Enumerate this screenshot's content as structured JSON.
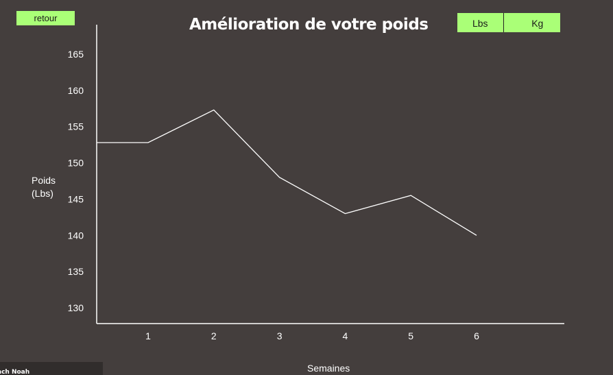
{
  "header": {
    "back_label": "retour",
    "title": "Amélioration de votre poids",
    "unit_lbs": "Lbs",
    "unit_kg": "Kg"
  },
  "footer": {
    "text": "ach Noah"
  },
  "colors": {
    "background": "#443e3d",
    "accent": "#aaff77",
    "line": "#ffffff"
  },
  "chart_data": {
    "type": "line",
    "title": "Amélioration de votre poids",
    "xlabel": "Semaines",
    "ylabel": "Poids\n(Lbs)",
    "x": [
      1,
      2,
      3,
      4,
      5,
      6
    ],
    "xtick_labels": [
      "1",
      "2",
      "3",
      "4",
      "5",
      "6"
    ],
    "ytick_labels": [
      "130",
      "135",
      "140",
      "145",
      "150",
      "155",
      "160",
      "165"
    ],
    "ylim": [
      130,
      165
    ],
    "series": [
      {
        "values": [
          152.8,
          152.8,
          157.3,
          148.0,
          143.0,
          145.5,
          140.0
        ],
        "x": [
          0.3,
          1,
          2,
          3,
          4,
          5,
          6
        ]
      }
    ],
    "grid": false,
    "legend": "none"
  }
}
